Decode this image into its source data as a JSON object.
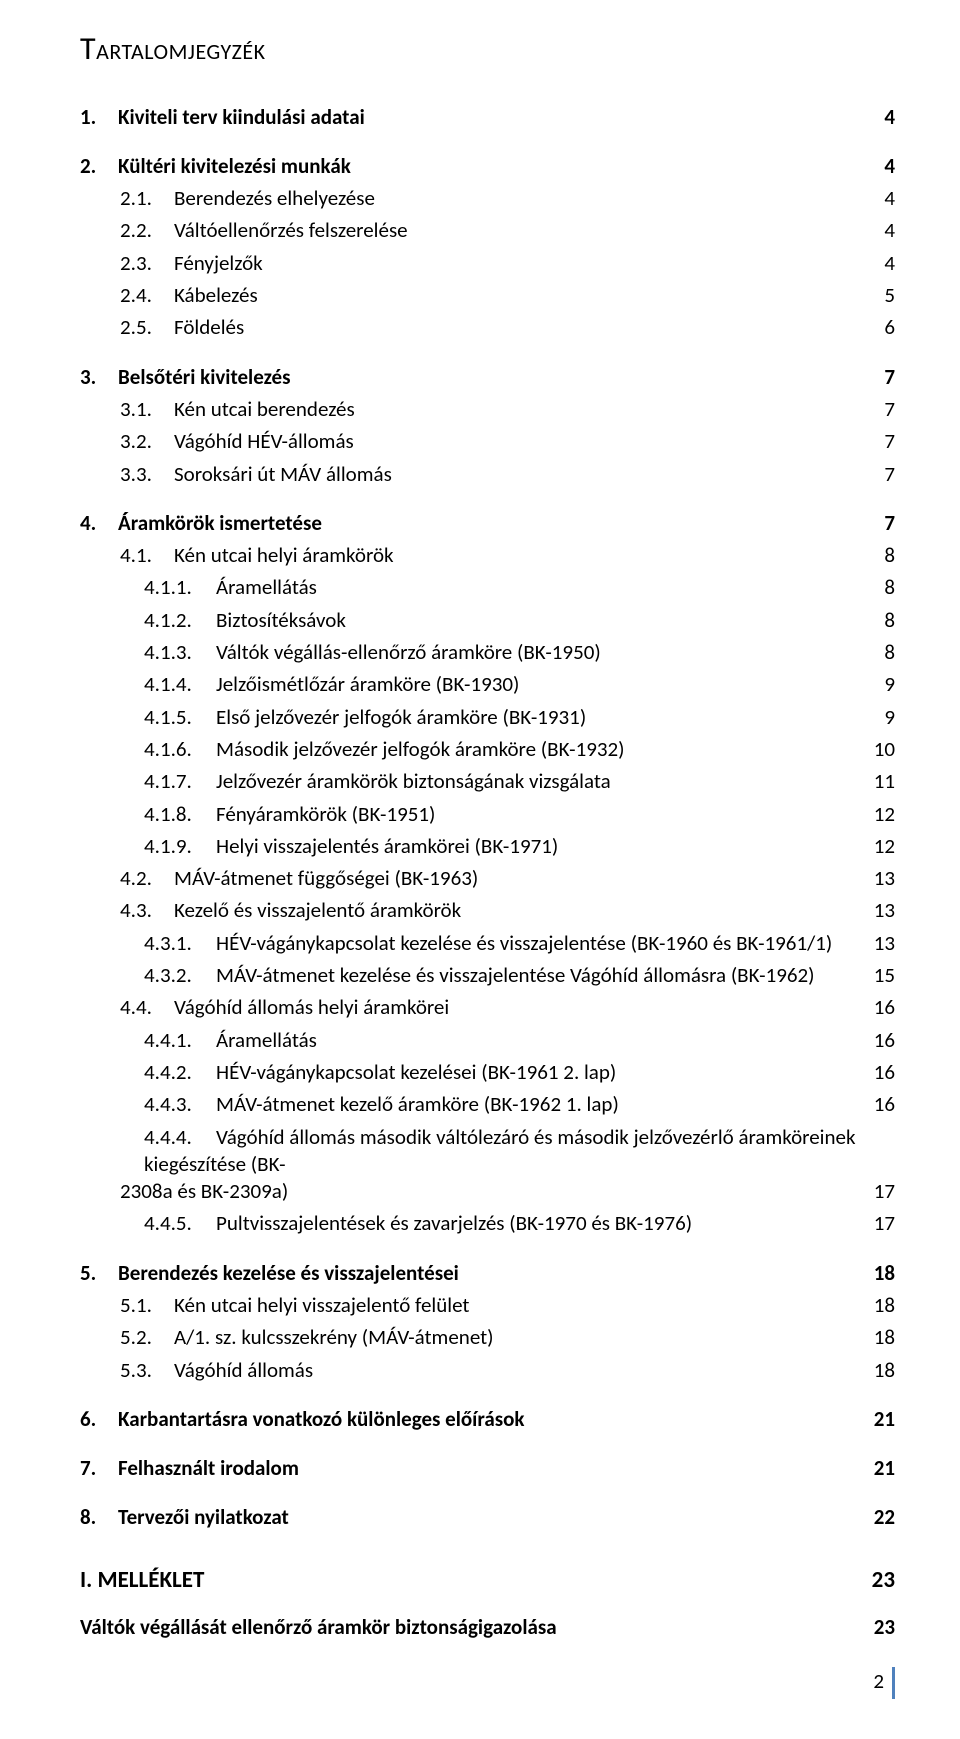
{
  "title": "Tartalomjegyzék",
  "toc": [
    {
      "level": 1,
      "num": "1.",
      "label": "Kiviteli terv kiindulási adatai",
      "page": "4"
    },
    {
      "level": 1,
      "num": "2.",
      "label": "Kültéri kivitelezési munkák",
      "page": "4"
    },
    {
      "level": 2,
      "num": "2.1.",
      "label": "Berendezés elhelyezése",
      "page": "4"
    },
    {
      "level": 2,
      "num": "2.2.",
      "label": "Váltóellenőrzés felszerelése",
      "page": "4"
    },
    {
      "level": 2,
      "num": "2.3.",
      "label": "Fényjelzők",
      "page": "4"
    },
    {
      "level": 2,
      "num": "2.4.",
      "label": "Kábelezés",
      "page": "5"
    },
    {
      "level": 2,
      "num": "2.5.",
      "label": "Földelés",
      "page": "6"
    },
    {
      "level": 1,
      "num": "3.",
      "label": "Belsőtéri kivitelezés",
      "page": "7"
    },
    {
      "level": 2,
      "num": "3.1.",
      "label": "Kén utcai berendezés",
      "page": "7"
    },
    {
      "level": 2,
      "num": "3.2.",
      "label": "Vágóhíd HÉV-állomás",
      "page": "7"
    },
    {
      "level": 2,
      "num": "3.3.",
      "label": "Soroksári út MÁV állomás",
      "page": "7"
    },
    {
      "level": 1,
      "num": "4.",
      "label": "Áramkörök ismertetése",
      "page": "7"
    },
    {
      "level": 2,
      "num": "4.1.",
      "label": "Kén utcai helyi áramkörök",
      "page": "8"
    },
    {
      "level": 3,
      "num": "4.1.1.",
      "label": "Áramellátás",
      "page": "8"
    },
    {
      "level": 3,
      "num": "4.1.2.",
      "label": "Biztosítéksávok",
      "page": "8"
    },
    {
      "level": 3,
      "num": "4.1.3.",
      "label": "Váltók végállás-ellenőrző áramköre (BK-1950)",
      "page": "8"
    },
    {
      "level": 3,
      "num": "4.1.4.",
      "label": "Jelzőismétlőzár áramköre (BK-1930)",
      "page": "9"
    },
    {
      "level": 3,
      "num": "4.1.5.",
      "label": "Első jelzővezér jelfogók áramköre (BK-1931)",
      "page": "9"
    },
    {
      "level": 3,
      "num": "4.1.6.",
      "label": "Második jelzővezér jelfogók áramköre (BK-1932)",
      "page": "10"
    },
    {
      "level": 3,
      "num": "4.1.7.",
      "label": "Jelzővezér áramkörök biztonságának vizsgálata",
      "page": "11"
    },
    {
      "level": 3,
      "num": "4.1.8.",
      "label": "Fényáramkörök (BK-1951)",
      "page": "12"
    },
    {
      "level": 3,
      "num": "4.1.9.",
      "label": "Helyi visszajelentés áramkörei (BK-1971)",
      "page": "12"
    },
    {
      "level": 2,
      "num": "4.2.",
      "label": "MÁV-átmenet függőségei (BK-1963)",
      "page": "13"
    },
    {
      "level": 2,
      "num": "4.3.",
      "label": "Kezelő és visszajelentő áramkörök",
      "page": "13"
    },
    {
      "level": 3,
      "num": "4.3.1.",
      "label": "HÉV-vágánykapcsolat kezelése és visszajelentése (BK-1960 és BK-1961/1)",
      "page": "13"
    },
    {
      "level": 3,
      "num": "4.3.2.",
      "label": "MÁV-átmenet kezelése és visszajelentése Vágóhíd állomásra (BK-1962)",
      "page": "15"
    },
    {
      "level": 2,
      "num": "4.4.",
      "label": "Vágóhíd állomás helyi áramkörei",
      "page": "16"
    },
    {
      "level": 3,
      "num": "4.4.1.",
      "label": "Áramellátás",
      "page": "16"
    },
    {
      "level": 3,
      "num": "4.4.2.",
      "label": "HÉV-vágánykapcsolat kezelései (BK-1961 2. lap)",
      "page": "16"
    },
    {
      "level": 3,
      "num": "4.4.3.",
      "label": "MÁV-átmenet kezelő áramköre (BK-1962 1. lap)",
      "page": "16"
    },
    {
      "level": "3wrap",
      "num": "4.4.4.",
      "label1": "Vágóhíd állomás második váltólezáró és második jelzővezérlő áramköreinek kiegészítése (BK-",
      "label2": "2308a és BK-2309a)",
      "page": "17"
    },
    {
      "level": 3,
      "num": "4.4.5.",
      "label": "Pultvisszajelentések és zavarjelzés (BK-1970 és BK-1976)",
      "page": "17"
    },
    {
      "level": 1,
      "num": "5.",
      "label": "Berendezés kezelése és visszajelentései",
      "page": "18"
    },
    {
      "level": 2,
      "num": "5.1.",
      "label": "Kén utcai helyi visszajelentő felület",
      "page": "18"
    },
    {
      "level": 2,
      "num": "5.2.",
      "label": "A/1. sz. kulcsszekrény (MÁV-átmenet)",
      "page": "18"
    },
    {
      "level": 2,
      "num": "5.3.",
      "label": "Vágóhíd állomás",
      "page": "18"
    },
    {
      "level": 1,
      "num": "6.",
      "label": "Karbantartásra vonatkozó különleges előírások",
      "page": "21"
    },
    {
      "level": 1,
      "num": "7.",
      "label": "Felhasznált irodalom",
      "page": "21"
    },
    {
      "level": 1,
      "num": "8.",
      "label": "Tervezői nyilatkozat",
      "page": "22"
    }
  ],
  "appendix": {
    "label": "I. MELLÉKLET",
    "page": "23"
  },
  "appendix_sub": {
    "label": "Váltók végállását ellenőrző áramkör biztonságigazolása",
    "page": "23"
  },
  "footer_page": "2",
  "accent_color": "#4f81bd"
}
